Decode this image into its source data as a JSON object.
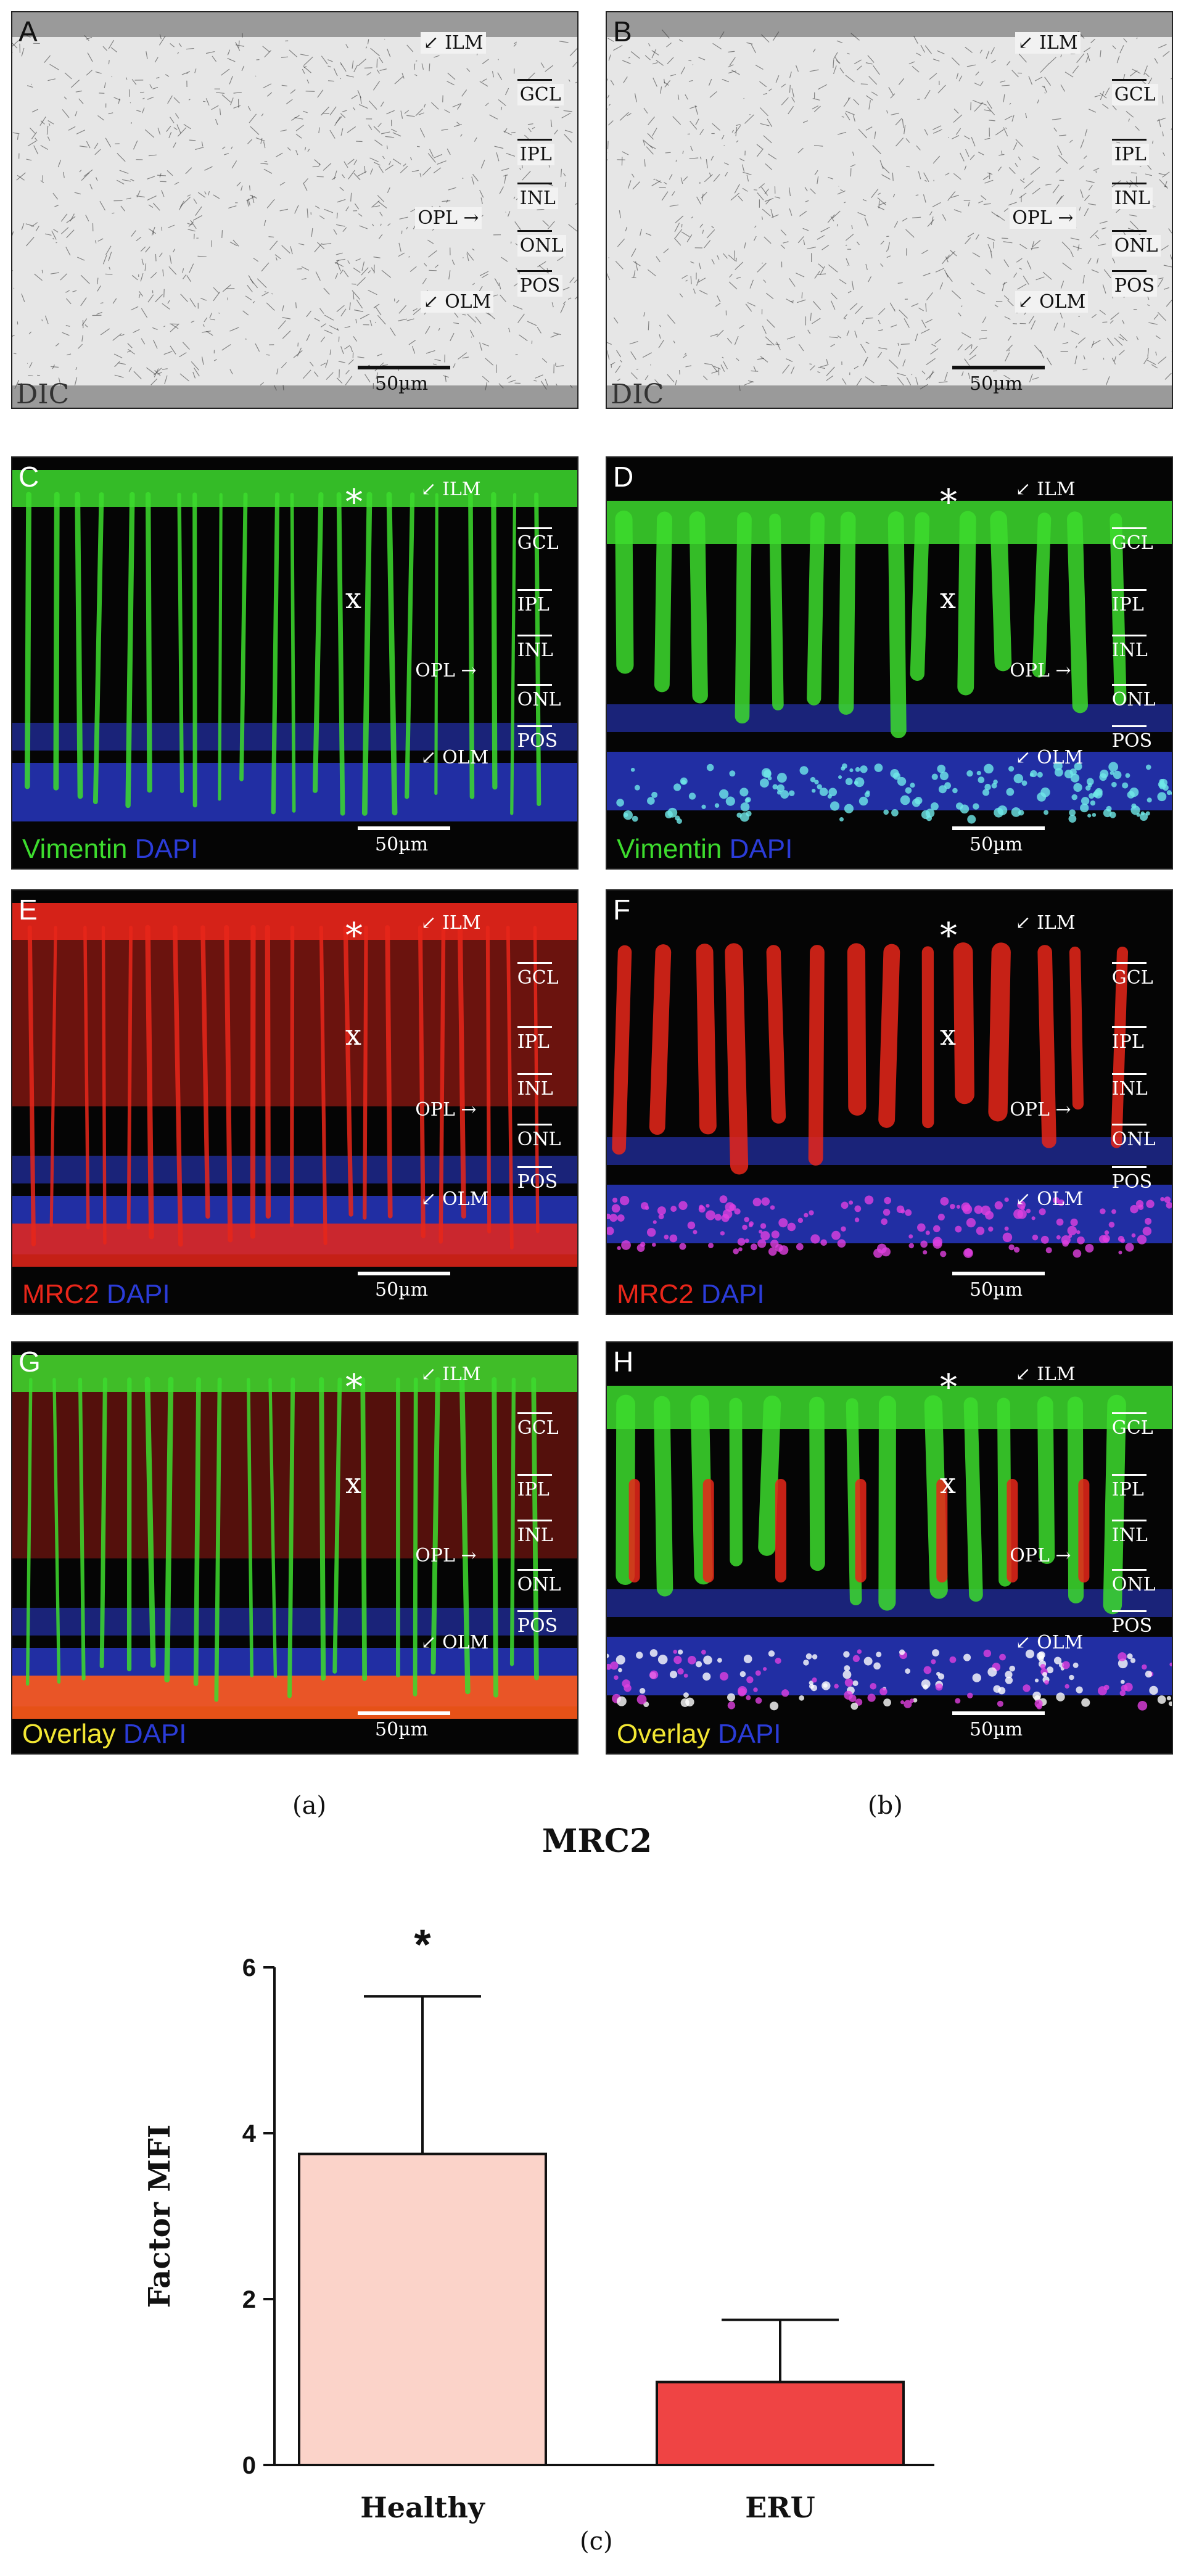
{
  "panels": [
    {
      "letter": "A",
      "kind": "dic",
      "channel": "DIC",
      "scale": "50µm",
      "layers": [
        "ILM",
        "GCL",
        "IPL",
        "INL",
        "OPL",
        "ONL",
        "OLM",
        "POS"
      ]
    },
    {
      "letter": "B",
      "kind": "dic",
      "channel": "DIC",
      "scale": "50µm",
      "layers": [
        "ILM",
        "GCL",
        "IPL",
        "INL",
        "OPL",
        "ONL",
        "OLM",
        "POS"
      ]
    },
    {
      "letter": "C",
      "kind": "vimentin",
      "stain": "Vimentin",
      "dapi": "DAPI",
      "scale": "50µm",
      "star": "*",
      "cross": "x",
      "layers": [
        "ILM",
        "GCL",
        "IPL",
        "INL",
        "OPL",
        "ONL",
        "OLM",
        "POS"
      ]
    },
    {
      "letter": "D",
      "kind": "vimentin-eru",
      "stain": "Vimentin",
      "dapi": "DAPI",
      "scale": "50µm",
      "star": "*",
      "cross": "x",
      "layers": [
        "ILM",
        "GCL",
        "IPL",
        "INL",
        "OPL",
        "ONL",
        "OLM",
        "POS"
      ]
    },
    {
      "letter": "E",
      "kind": "mrc2",
      "stain": "MRC2",
      "dapi": "DAPI",
      "scale": "50µm",
      "star": "*",
      "cross": "x",
      "layers": [
        "ILM",
        "GCL",
        "IPL",
        "INL",
        "OPL",
        "ONL",
        "OLM",
        "POS"
      ]
    },
    {
      "letter": "F",
      "kind": "mrc2-eru",
      "stain": "MRC2",
      "dapi": "DAPI",
      "scale": "50µm",
      "star": "*",
      "cross": "x",
      "layers": [
        "ILM",
        "GCL",
        "IPL",
        "INL",
        "OPL",
        "ONL",
        "OLM",
        "POS"
      ]
    },
    {
      "letter": "G",
      "kind": "overlay",
      "stain": "Overlay",
      "dapi": "DAPI",
      "scale": "50µm",
      "star": "*",
      "cross": "x",
      "layers": [
        "ILM",
        "GCL",
        "IPL",
        "INL",
        "OPL",
        "ONL",
        "OLM",
        "POS"
      ]
    },
    {
      "letter": "H",
      "kind": "overlay-eru",
      "stain": "Overlay",
      "dapi": "DAPI",
      "scale": "50µm",
      "star": "*",
      "cross": "x",
      "layers": [
        "ILM",
        "GCL",
        "IPL",
        "INL",
        "OPL",
        "ONL",
        "OLM",
        "POS"
      ]
    }
  ],
  "captions": {
    "a": "(a)",
    "b": "(b)",
    "c": "(c)"
  },
  "colors": {
    "vimentin": "#3ddc2e",
    "dapi": "#2b3cd8",
    "mrc2": "#e8261a",
    "overlay": "#f2e633",
    "bar_healthy": "#fbd3c9",
    "bar_eru": "#ef4444"
  },
  "chart_data": {
    "type": "bar",
    "title": "MRC2",
    "categories": [
      "Healthy",
      "ERU"
    ],
    "values": [
      3.75,
      1.0
    ],
    "error": [
      1.9,
      0.75
    ],
    "significance": [
      "*",
      ""
    ],
    "ylabel": "Factor MFI",
    "xlabel": "",
    "ylim": [
      0,
      6
    ],
    "yticks": [
      0,
      2,
      4,
      6
    ],
    "grid": false
  }
}
